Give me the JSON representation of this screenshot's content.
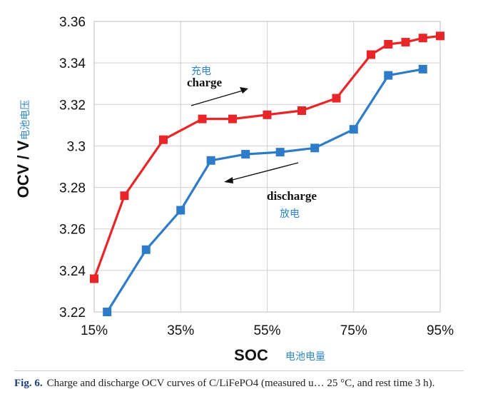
{
  "chart_data": {
    "type": "line",
    "title": "",
    "xlabel": "SOC",
    "xlabel_cn": "电池电量",
    "ylabel": "OCV / V",
    "ylabel_cn": "电池电压",
    "xlim": [
      15,
      95
    ],
    "ylim": [
      3.22,
      3.36
    ],
    "x_ticks": [
      15,
      35,
      55,
      75,
      95
    ],
    "x_tick_labels": [
      "15%",
      "35%",
      "55%",
      "75%",
      "95%"
    ],
    "y_ticks": [
      3.22,
      3.24,
      3.26,
      3.28,
      3.3,
      3.32,
      3.34,
      3.36
    ],
    "y_tick_labels": [
      "3.22",
      "3.24",
      "3.26",
      "3.28",
      "3.3",
      "3.32",
      "3.34",
      "3.36"
    ],
    "grid": true,
    "series": [
      {
        "name": "charge",
        "name_cn": "充电",
        "color": "#e8262a",
        "x": [
          15,
          22,
          31,
          40,
          47,
          55,
          63,
          71,
          79,
          83,
          87,
          91,
          95
        ],
        "y": [
          3.236,
          3.276,
          3.303,
          3.313,
          3.313,
          3.315,
          3.317,
          3.323,
          3.344,
          3.349,
          3.35,
          3.352,
          3.353
        ]
      },
      {
        "name": "discharge",
        "name_cn": "放电",
        "color": "#2e7bc8",
        "x": [
          18,
          27,
          35,
          42,
          50,
          58,
          66,
          75,
          83,
          91
        ],
        "y": [
          3.22,
          3.25,
          3.269,
          3.293,
          3.296,
          3.297,
          3.299,
          3.308,
          3.334,
          3.337
        ]
      }
    ]
  },
  "caption": {
    "fig_label": "Fig. 6.",
    "text": "Charge and discharge OCV curves of C/LiFePO4 (measured u… 25 °C, and rest time 3 h)."
  }
}
